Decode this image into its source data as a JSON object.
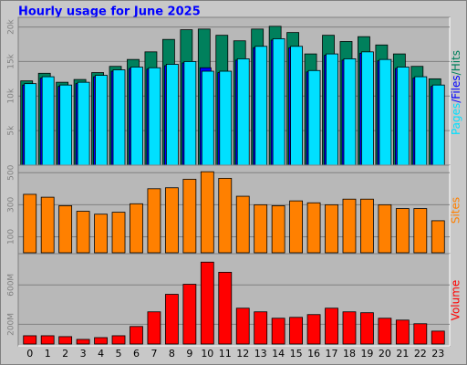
{
  "chart_data": [
    {
      "type": "bar",
      "title": "Hourly usage for June 2025",
      "y_label_separator": "/",
      "ylim": [
        0,
        21000
      ],
      "yticks": [
        {
          "value": 5000,
          "label": "5k"
        },
        {
          "value": 10000,
          "label": "10k"
        },
        {
          "value": 15000,
          "label": "15k"
        },
        {
          "value": 20000,
          "label": "20k"
        }
      ],
      "grid": true,
      "series": [
        {
          "name": "Hits",
          "color": "#00805c",
          "values": [
            12200,
            13300,
            12000,
            12400,
            13400,
            14300,
            15300,
            16400,
            18200,
            19600,
            19700,
            18800,
            18000,
            19700,
            20100,
            19200,
            16100,
            18800,
            17900,
            18600,
            17400,
            16100,
            14300,
            12500
          ]
        },
        {
          "name": "Files",
          "color": "#0000ff",
          "values": [
            11600,
            12600,
            11400,
            11800,
            12800,
            13600,
            14000,
            13900,
            14400,
            14800,
            14100,
            13400,
            15200,
            17000,
            18100,
            17000,
            13500,
            15900,
            15200,
            16200,
            15100,
            14000,
            12600,
            11400
          ]
        },
        {
          "name": "Pages",
          "color": "#00e0ff",
          "values": [
            11800,
            12800,
            11600,
            12000,
            13000,
            13800,
            14200,
            14100,
            14600,
            15000,
            13600,
            13600,
            15400,
            17200,
            18300,
            17200,
            13700,
            16100,
            15400,
            16400,
            15300,
            14200,
            12800,
            11600
          ]
        }
      ]
    },
    {
      "type": "bar",
      "y_label": "Sites",
      "color": "#ff8000",
      "ylim": [
        0,
        530
      ],
      "yticks": [
        100,
        300,
        500
      ],
      "grid": true,
      "values": [
        365,
        347,
        294,
        259,
        241,
        253,
        306,
        400,
        406,
        459,
        506,
        465,
        353,
        300,
        294,
        324,
        312,
        300,
        335,
        335,
        300,
        276,
        276,
        200
      ]
    },
    {
      "type": "bar",
      "y_label": "Volume",
      "color": "#ff0000",
      "ylim": [
        0,
        890
      ],
      "yticks": [
        {
          "value": 200,
          "label": "200M"
        },
        {
          "value": 600,
          "label": "600M"
        }
      ],
      "grid": true,
      "categories": [
        "0",
        "1",
        "2",
        "3",
        "4",
        "5",
        "6",
        "7",
        "8",
        "9",
        "10",
        "11",
        "12",
        "13",
        "14",
        "15",
        "16",
        "17",
        "18",
        "19",
        "20",
        "21",
        "22",
        "23"
      ],
      "values": [
        84,
        84,
        75,
        47,
        65,
        84,
        178,
        327,
        505,
        607,
        832,
        729,
        364,
        327,
        262,
        271,
        299,
        364,
        327,
        318,
        262,
        243,
        206,
        131
      ]
    }
  ]
}
